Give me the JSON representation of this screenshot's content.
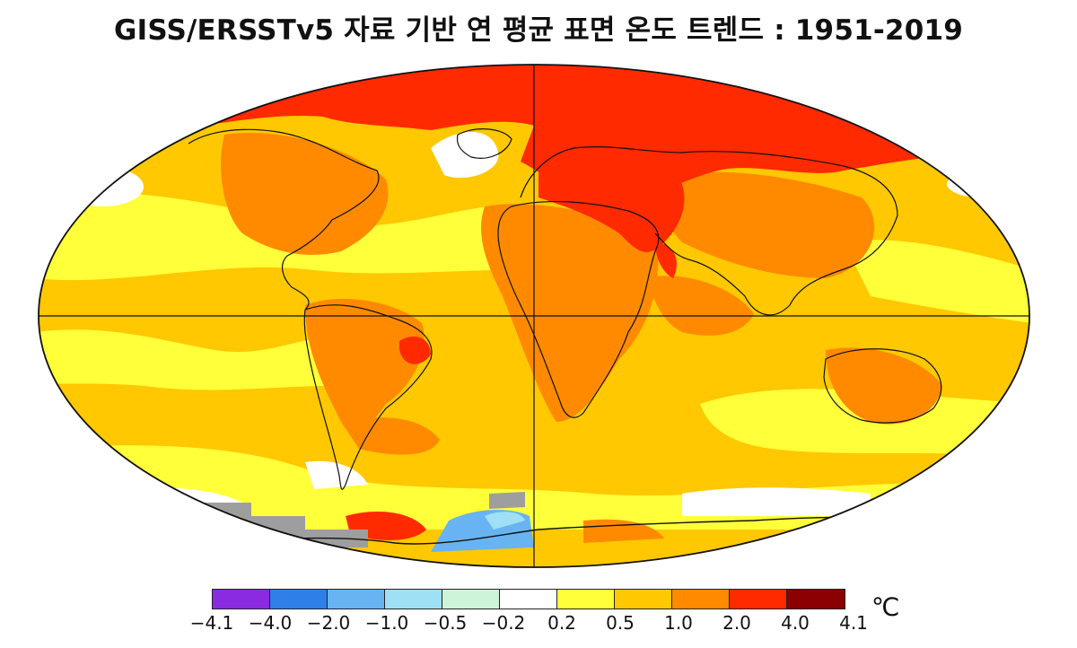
{
  "title": "GISS/ERSSTv5 자료 기반 연 평균 표면 온도 트렌드 : 1951-2019",
  "map": {
    "projection": "Robinson",
    "description_regions": [
      {
        "name": "arctic_north",
        "color": "#ff2a00"
      },
      {
        "name": "siberia_europe",
        "color": "#ff2a00"
      },
      {
        "name": "tropics",
        "color": "#ff8a00"
      },
      {
        "name": "oceans",
        "color": "#ffcc00"
      },
      {
        "name": "antarctica_missing",
        "color": "#9e9e9e"
      }
    ]
  },
  "legend": {
    "unit": "℃",
    "colors": [
      "#8a2be2",
      "#2f7fe8",
      "#68b4f2",
      "#9fe0f5",
      "#cdf3d8",
      "#ffffff",
      "#ffff3a",
      "#ffc800",
      "#ff8a00",
      "#ff2a00",
      "#8b0000"
    ],
    "labels": [
      "−4.1",
      "−4.0",
      "−2.0",
      "−1.0",
      "−0.5",
      "−0.2",
      "0.2",
      "0.5",
      "1.0",
      "2.0",
      "4.0",
      "4.1"
    ]
  }
}
